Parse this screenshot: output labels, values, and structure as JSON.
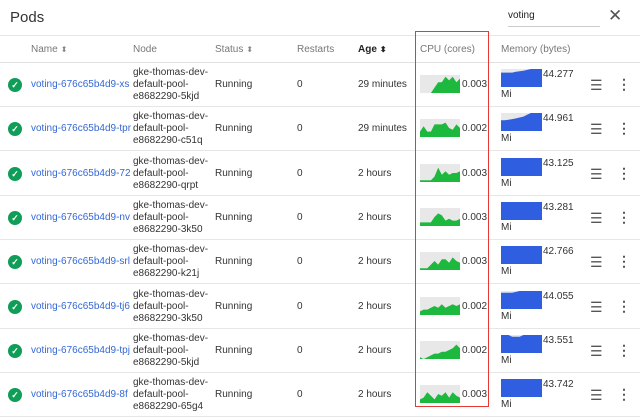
{
  "header": {
    "title": "Pods",
    "search_value": "voting",
    "close_icon": "close-icon"
  },
  "columns": {
    "name": "Name",
    "node": "Node",
    "status": "Status",
    "restarts": "Restarts",
    "age": "Age",
    "cpu": "CPU (cores)",
    "memory": "Memory (bytes)"
  },
  "colors": {
    "cpu": "#1db83e",
    "memory": "#2f5fe0",
    "link": "#3367d6",
    "highlight": "#e53935",
    "ok": "#0f9d58"
  },
  "rows": [
    {
      "name": "voting-676c65b4d9-xs",
      "node": [
        "gke-thomas-dev-",
        "default-pool-",
        "e8682290-5kjd"
      ],
      "status": "Running",
      "restarts": "0",
      "age": "29 minutes",
      "cpu": "0.003",
      "memory": "44.277",
      "unit": "Mi",
      "cpu_spark": [
        0,
        0,
        0,
        0,
        3,
        6,
        6,
        9,
        7,
        9,
        6,
        8
      ],
      "mem_spark": [
        8,
        8,
        8,
        8,
        8.5,
        8.7,
        9,
        9.5,
        10,
        10,
        10,
        10
      ]
    },
    {
      "name": "voting-676c65b4d9-tpr",
      "node": [
        "gke-thomas-dev-",
        "default-pool-",
        "e8682290-c51q"
      ],
      "status": "Running",
      "restarts": "0",
      "age": "29 minutes",
      "cpu": "0.002",
      "memory": "44.961",
      "unit": "Mi",
      "cpu_spark": [
        3,
        6,
        3,
        3,
        7,
        7,
        7,
        8,
        5,
        4,
        7,
        5
      ],
      "mem_spark": [
        6,
        6,
        6.3,
        6.6,
        7,
        7.5,
        8,
        9,
        10,
        10,
        10,
        10
      ]
    },
    {
      "name": "voting-676c65b4d9-72",
      "node": [
        "gke-thomas-dev-",
        "default-pool-",
        "e8682290-qrpt"
      ],
      "status": "Running",
      "restarts": "0",
      "age": "2 hours",
      "cpu": "0.003",
      "memory": "43.125",
      "unit": "Mi",
      "cpu_spark": [
        1,
        1,
        1,
        1,
        3,
        8,
        4,
        6,
        4,
        5,
        5,
        6
      ],
      "mem_spark": [
        10,
        10,
        10,
        10,
        10,
        10,
        10,
        10,
        10,
        10,
        10,
        10
      ]
    },
    {
      "name": "voting-676c65b4d9-nv",
      "node": [
        "gke-thomas-dev-",
        "default-pool-",
        "e8682290-3k50"
      ],
      "status": "Running",
      "restarts": "0",
      "age": "2 hours",
      "cpu": "0.003",
      "memory": "43.281",
      "unit": "Mi",
      "cpu_spark": [
        2,
        2,
        2,
        2,
        5,
        7,
        6,
        3,
        4,
        3,
        3,
        4
      ],
      "mem_spark": [
        10,
        10,
        10,
        10,
        10,
        10,
        10,
        10,
        10,
        10,
        10,
        10
      ]
    },
    {
      "name": "voting-676c65b4d9-srl",
      "node": [
        "gke-thomas-dev-",
        "default-pool-",
        "e8682290-k21j"
      ],
      "status": "Running",
      "restarts": "0",
      "age": "2 hours",
      "cpu": "0.003",
      "memory": "42.766",
      "unit": "Mi",
      "cpu_spark": [
        1,
        1,
        1,
        3,
        5,
        3,
        6,
        6,
        4,
        7,
        5,
        4
      ],
      "mem_spark": [
        10,
        10,
        10,
        10,
        10,
        10,
        10,
        10,
        10,
        10,
        10,
        10
      ]
    },
    {
      "name": "voting-676c65b4d9-tj6",
      "node": [
        "gke-thomas-dev-",
        "default-pool-",
        "e8682290-3k50"
      ],
      "status": "Running",
      "restarts": "0",
      "age": "2 hours",
      "cpu": "0.002",
      "memory": "44.055",
      "unit": "Mi",
      "cpu_spark": [
        2,
        3,
        3,
        4,
        5,
        4,
        6,
        4,
        5,
        6,
        5,
        6
      ],
      "mem_spark": [
        9,
        9,
        9,
        9,
        9.5,
        10,
        10,
        10,
        10,
        10,
        10,
        10
      ]
    },
    {
      "name": "voting-676c65b4d9-tpj",
      "node": [
        "gke-thomas-dev-",
        "default-pool-",
        "e8682290-5kjd"
      ],
      "status": "Running",
      "restarts": "0",
      "age": "2 hours",
      "cpu": "0.002",
      "memory": "43.551",
      "unit": "Mi",
      "cpu_spark": [
        1,
        0,
        1,
        2,
        3,
        3,
        4,
        4,
        5,
        6,
        8,
        6
      ],
      "mem_spark": [
        10,
        10,
        10,
        9,
        9,
        9,
        10,
        10,
        10,
        10,
        10,
        10
      ]
    },
    {
      "name": "voting-676c65b4d9-8f",
      "node": [
        "gke-thomas-dev-",
        "default-pool-",
        "e8682290-65g4"
      ],
      "status": "Running",
      "restarts": "0",
      "age": "2 hours",
      "cpu": "0.003",
      "memory": "43.742",
      "unit": "Mi",
      "cpu_spark": [
        2,
        3,
        6,
        4,
        2,
        5,
        4,
        6,
        3,
        6,
        4,
        3
      ],
      "mem_spark": [
        10,
        10,
        10,
        10,
        10,
        10,
        10,
        10,
        10,
        10,
        10,
        10
      ]
    }
  ]
}
